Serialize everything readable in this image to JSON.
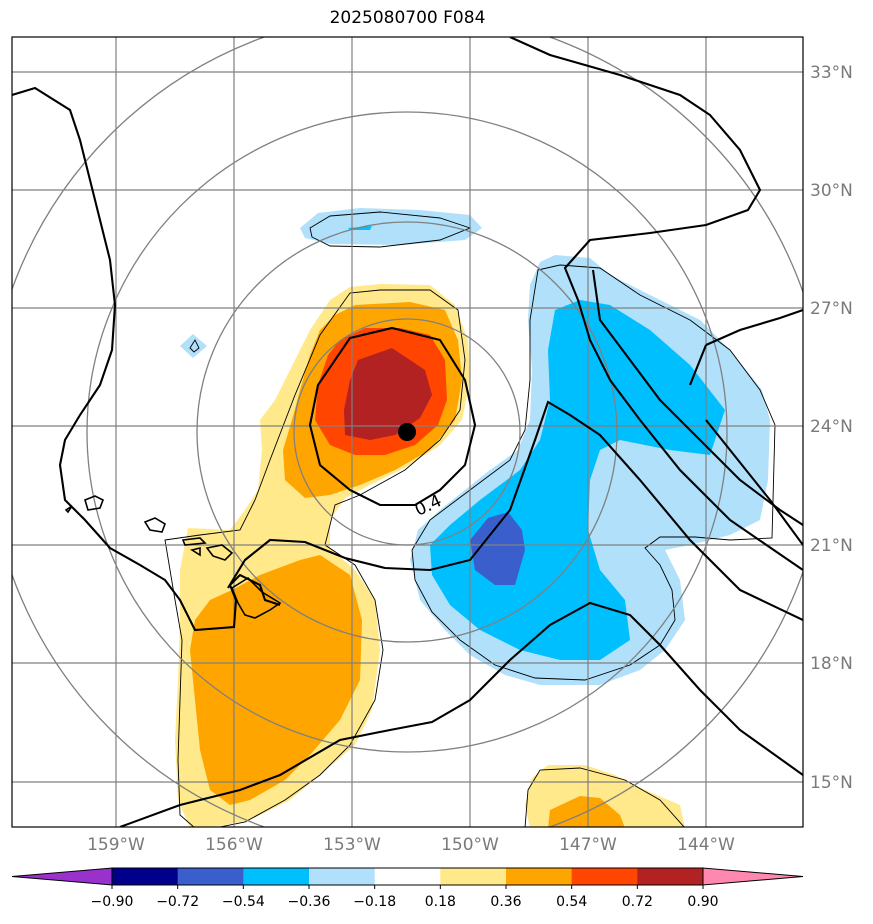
{
  "title": "2025080700 F084",
  "map": {
    "lat_labels": [
      "33°N",
      "30°N",
      "27°N",
      "24°N",
      "21°N",
      "18°N",
      "15°N"
    ],
    "lon_labels": [
      "159°W",
      "156°W",
      "153°W",
      "150°W",
      "147°W",
      "144°W"
    ],
    "contour_label": "0.4",
    "center_marker": {
      "lat": 23.8,
      "lon": -151.6
    }
  },
  "colorbar": {
    "ticks": [
      "−0.90",
      "−0.72",
      "−0.54",
      "−0.36",
      "−0.18",
      "0.18",
      "0.36",
      "0.54",
      "0.72",
      "0.90"
    ],
    "colors": [
      "#9932cc",
      "#00008b",
      "#3a5fcd",
      "#00bfff",
      "#b0e0fa",
      "#ffffff",
      "#ffe98a",
      "#ffa500",
      "#ff4500",
      "#b22222",
      "#ff88b0"
    ]
  },
  "colors": {
    "very_light_blue": "#b0e0fa",
    "light_blue": "#00bfff",
    "mid_blue": "#3a5fcd",
    "pale_yellow": "#ffe98a",
    "orange": "#ffa500",
    "red_orange": "#ff4500",
    "dark_red": "#b22222"
  }
}
